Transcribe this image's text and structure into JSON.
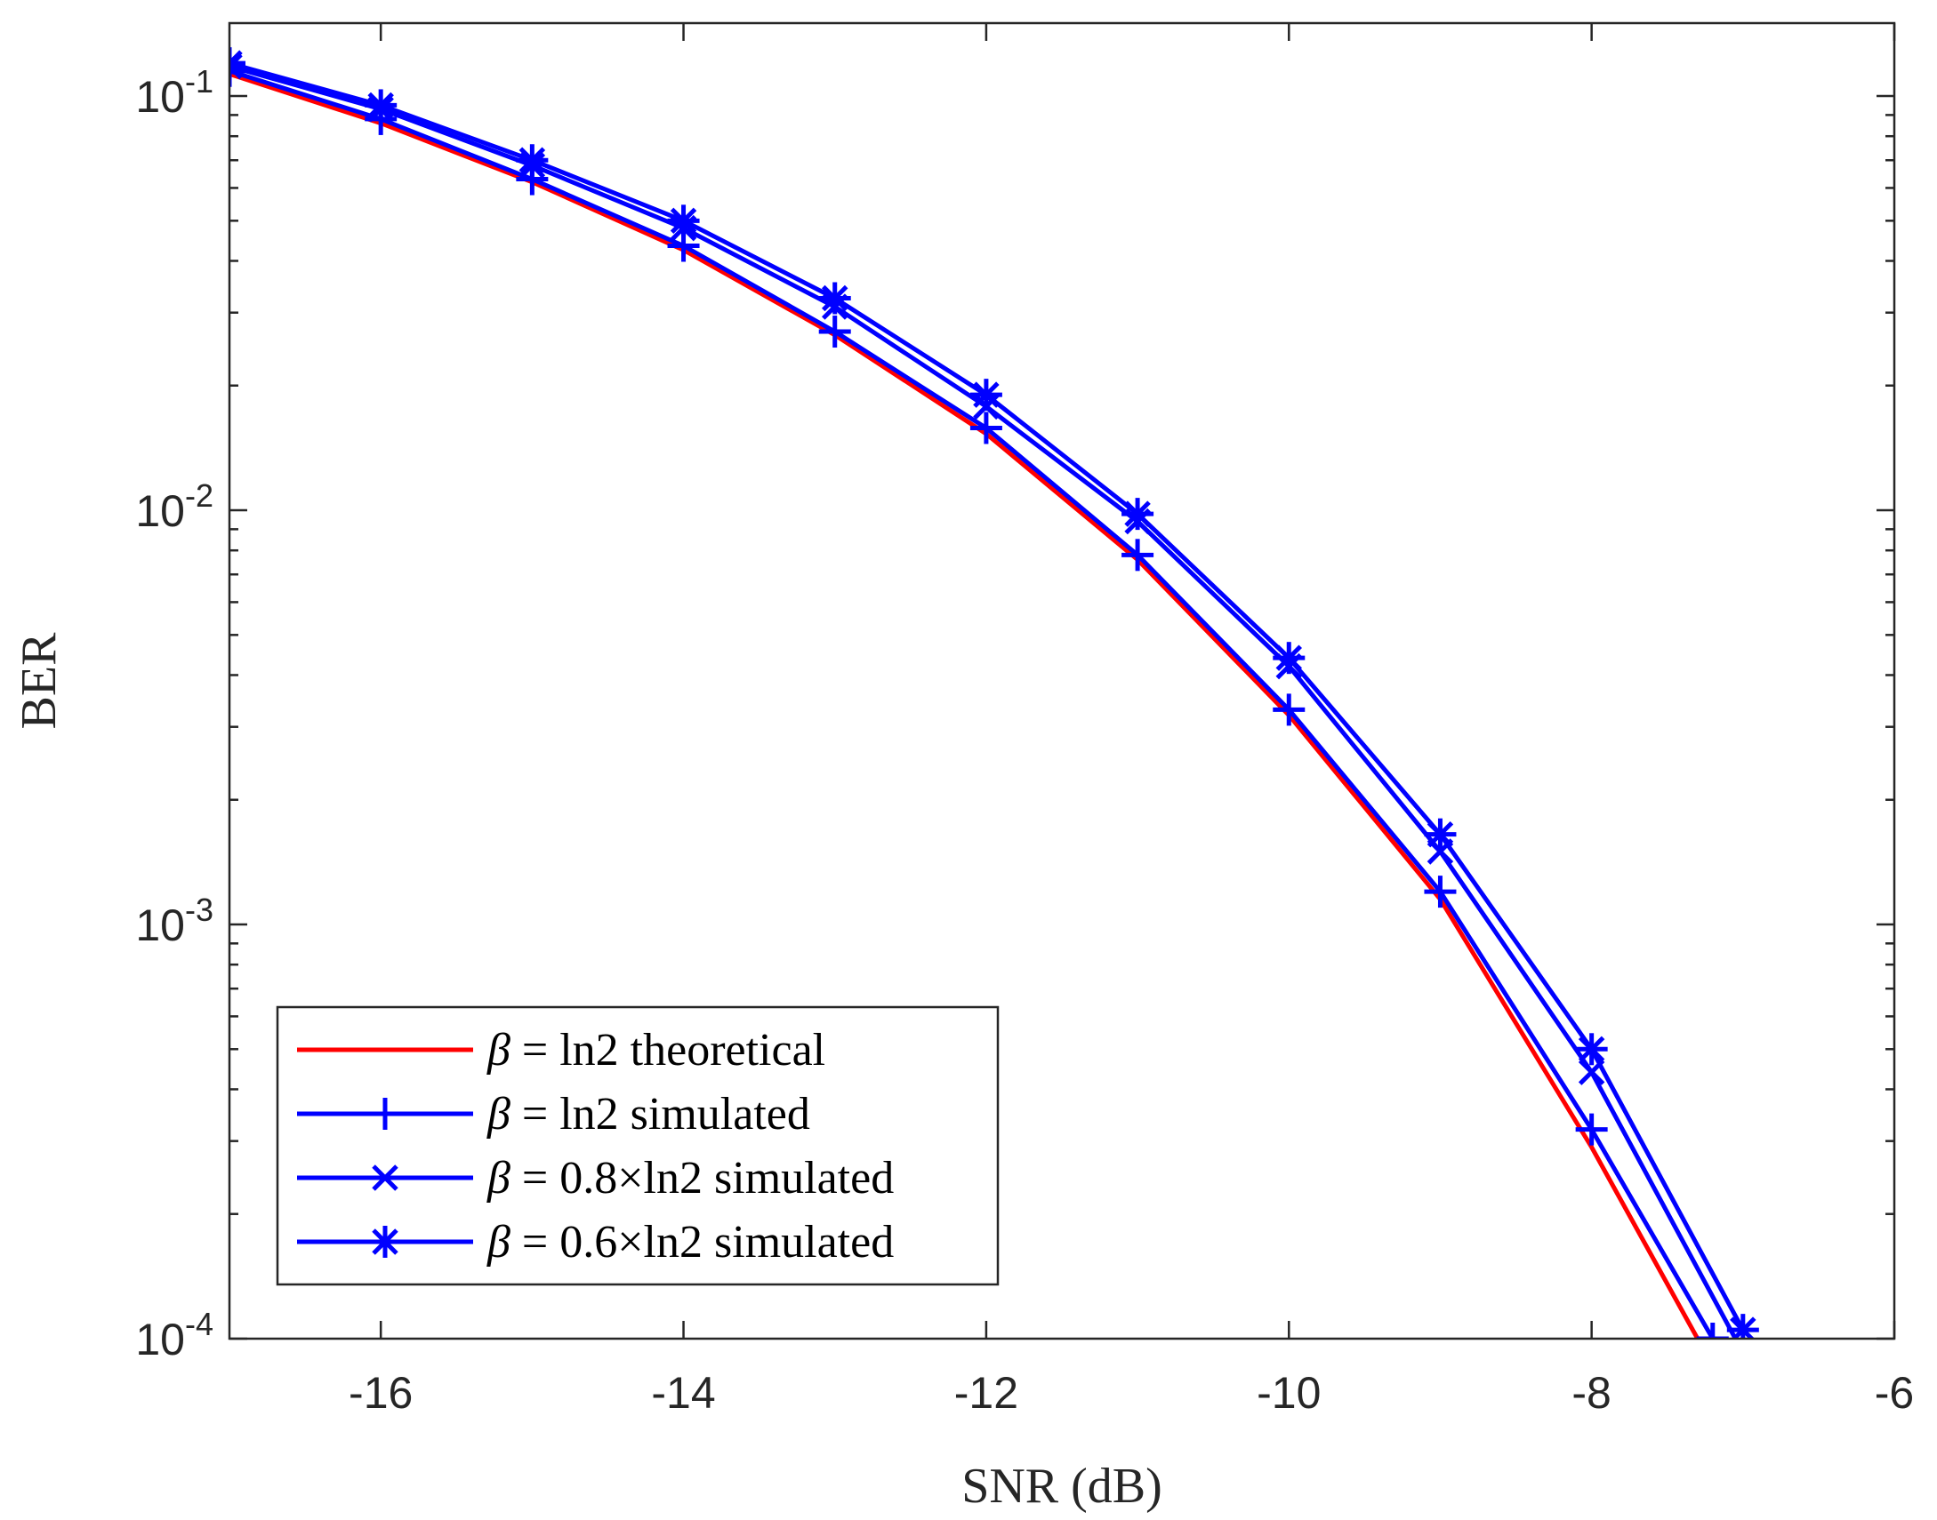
{
  "chart_data": {
    "type": "line",
    "title": "",
    "xlabel": "SNR (dB)",
    "ylabel": "BER",
    "xlim": [
      -17,
      -6
    ],
    "ylim": [
      0.0001,
      0.15
    ],
    "yscale": "log",
    "xticks": [
      -16,
      -14,
      -12,
      -10,
      -8,
      -6
    ],
    "xtick_labels": [
      "-16",
      "-14",
      "-12",
      "-10",
      "-8",
      "-6"
    ],
    "yticks": [
      {
        "value": 0.1,
        "base": "10",
        "exp": "-1"
      },
      {
        "value": 0.01,
        "base": "10",
        "exp": "-2"
      },
      {
        "value": 0.001,
        "base": "10",
        "exp": "-3"
      },
      {
        "value": 0.0001,
        "base": "10",
        "exp": "-4"
      }
    ],
    "grid": false,
    "legend_position": "bottom-left",
    "series": [
      {
        "name": "β = ln2 theoretical",
        "symbol": "β",
        "label_rest": " = ln2 theoretical",
        "color": "#FF0000",
        "marker": "none",
        "x": [
          -17,
          -16,
          -15,
          -14,
          -13,
          -12,
          -11,
          -10,
          -9,
          -8,
          -7.3
        ],
        "y": [
          0.113,
          0.086,
          0.062,
          0.0425,
          0.0265,
          0.0153,
          0.0076,
          0.0032,
          0.00115,
          0.00029,
          0.0001
        ]
      },
      {
        "name": "β = ln2 simulated",
        "symbol": "β",
        "label_rest": " = ln2 simulated",
        "color": "#0000FF",
        "marker": "plus",
        "x": [
          -17,
          -16,
          -15,
          -14,
          -13,
          -12,
          -11,
          -10,
          -9,
          -8,
          -7.2
        ],
        "y": [
          0.115,
          0.088,
          0.063,
          0.0435,
          0.027,
          0.0158,
          0.0078,
          0.0033,
          0.0012,
          0.00032,
          0.0001
        ]
      },
      {
        "name": "β = 0.8×ln2 simulated",
        "symbol": "β",
        "label_rest": " = 0.8×ln2 simulated",
        "color": "#0000FF",
        "marker": "x",
        "x": [
          -17,
          -16,
          -15,
          -14,
          -13,
          -12,
          -11,
          -10,
          -9,
          -8,
          -7.05
        ],
        "y": [
          0.118,
          0.093,
          0.068,
          0.048,
          0.031,
          0.0178,
          0.0094,
          0.0042,
          0.0015,
          0.00044,
          0.0001
        ]
      },
      {
        "name": "β = 0.6×ln2 simulated",
        "symbol": "β",
        "label_rest": " = 0.6×ln2 simulated",
        "color": "#0000FF",
        "marker": "star",
        "x": [
          -17,
          -16,
          -15,
          -14,
          -13,
          -12,
          -11,
          -10,
          -9,
          -8,
          -7
        ],
        "y": [
          0.12,
          0.095,
          0.07,
          0.05,
          0.0325,
          0.019,
          0.0098,
          0.0044,
          0.00165,
          0.0005,
          0.000105
        ]
      }
    ]
  }
}
